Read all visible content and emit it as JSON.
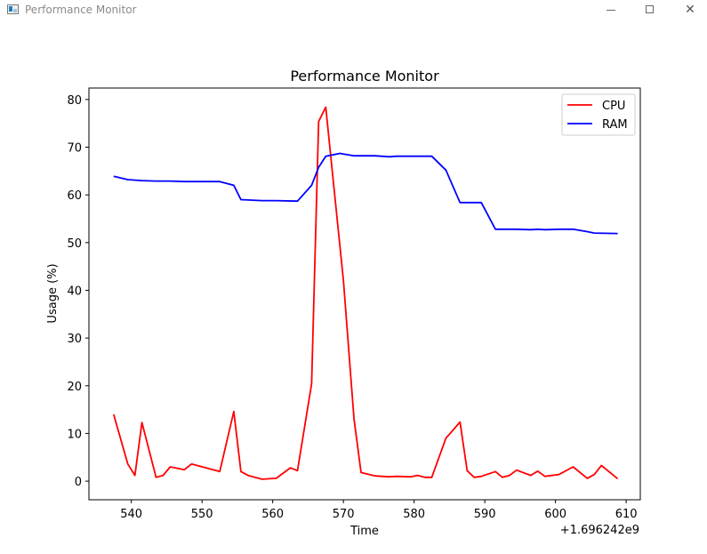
{
  "window": {
    "title": "Performance Monitor",
    "minimize_icon": "minimize-icon",
    "maximize_icon": "maximize-icon",
    "close_icon": "close-icon",
    "close_glyph": "✕"
  },
  "chart_data": {
    "type": "line",
    "title": "Performance Monitor",
    "xlabel": "Time",
    "ylabel": "Usage (%)",
    "x_offset_label": "+1.696242e9",
    "xlim": [
      534,
      612
    ],
    "ylim": [
      -3.9,
      82.4
    ],
    "xticks": [
      540,
      550,
      560,
      570,
      580,
      590,
      600,
      610
    ],
    "yticks": [
      0,
      10,
      20,
      30,
      40,
      50,
      60,
      70,
      80
    ],
    "grid": false,
    "legend_position": "top-right",
    "series": [
      {
        "name": "CPU",
        "color": "#ff0000",
        "points": [
          [
            537.5,
            14.0
          ],
          [
            539.5,
            3.6
          ],
          [
            540.5,
            1.2
          ],
          [
            541.5,
            12.3
          ],
          [
            543.5,
            0.8
          ],
          [
            544.5,
            1.2
          ],
          [
            545.5,
            3.0
          ],
          [
            547.5,
            2.4
          ],
          [
            548.5,
            3.6
          ],
          [
            552.5,
            2.0
          ],
          [
            554.5,
            14.6
          ],
          [
            555.5,
            2.0
          ],
          [
            556.5,
            1.2
          ],
          [
            558.5,
            0.4
          ],
          [
            560.5,
            0.6
          ],
          [
            562.5,
            2.8
          ],
          [
            563.5,
            2.2
          ],
          [
            565.5,
            20.4
          ],
          [
            566.5,
            75.4
          ],
          [
            567.5,
            78.4
          ],
          [
            570.0,
            42.0
          ],
          [
            571.5,
            13.0
          ],
          [
            572.5,
            1.8
          ],
          [
            574.5,
            1.1
          ],
          [
            576.5,
            0.9
          ],
          [
            577.5,
            1.0
          ],
          [
            579.5,
            0.9
          ],
          [
            580.5,
            1.2
          ],
          [
            581.5,
            0.8
          ],
          [
            582.5,
            0.8
          ],
          [
            584.5,
            9.0
          ],
          [
            586.5,
            12.4
          ],
          [
            587.5,
            2.2
          ],
          [
            588.5,
            0.8
          ],
          [
            589.5,
            1.0
          ],
          [
            591.5,
            2.0
          ],
          [
            592.5,
            0.8
          ],
          [
            593.5,
            1.2
          ],
          [
            594.5,
            2.3
          ],
          [
            596.5,
            1.2
          ],
          [
            597.5,
            2.1
          ],
          [
            598.5,
            1.0
          ],
          [
            600.5,
            1.4
          ],
          [
            602.5,
            3.0
          ],
          [
            604.5,
            0.6
          ],
          [
            605.5,
            1.4
          ],
          [
            606.5,
            3.3
          ],
          [
            608.8,
            0.5
          ]
        ]
      },
      {
        "name": "RAM",
        "color": "#0000ff",
        "points": [
          [
            537.5,
            63.9
          ],
          [
            539.5,
            63.2
          ],
          [
            541.5,
            63.0
          ],
          [
            543.5,
            62.9
          ],
          [
            545.5,
            62.9
          ],
          [
            547.5,
            62.8
          ],
          [
            550.5,
            62.8
          ],
          [
            552.5,
            62.8
          ],
          [
            554.5,
            62.0
          ],
          [
            555.5,
            59.0
          ],
          [
            558.5,
            58.8
          ],
          [
            560.5,
            58.8
          ],
          [
            563.5,
            58.7
          ],
          [
            565.5,
            62.0
          ],
          [
            566.5,
            65.8
          ],
          [
            567.5,
            68.1
          ],
          [
            569.5,
            68.7
          ],
          [
            571.5,
            68.2
          ],
          [
            574.5,
            68.2
          ],
          [
            576.5,
            68.0
          ],
          [
            577.5,
            68.1
          ],
          [
            580.5,
            68.1
          ],
          [
            582.5,
            68.1
          ],
          [
            584.5,
            65.2
          ],
          [
            586.5,
            58.4
          ],
          [
            589.5,
            58.4
          ],
          [
            591.5,
            52.8
          ],
          [
            594.5,
            52.8
          ],
          [
            596.5,
            52.7
          ],
          [
            597.5,
            52.8
          ],
          [
            598.5,
            52.7
          ],
          [
            600.5,
            52.8
          ],
          [
            602.5,
            52.8
          ],
          [
            604.5,
            52.3
          ],
          [
            605.5,
            52.0
          ],
          [
            608.8,
            51.9
          ]
        ]
      }
    ]
  }
}
